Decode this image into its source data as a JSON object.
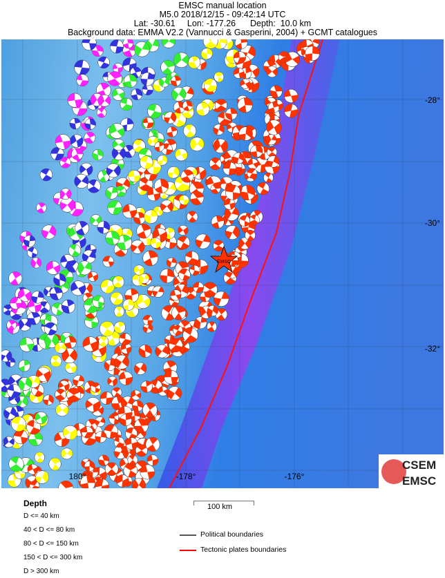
{
  "header": {
    "line1": "EMSC manual location",
    "line2": "M5.0  2018/12/15 - 09:42:14 UTC",
    "line3": "Lat: -30.61     Lon: -177.26      Depth:  10.0 km",
    "line4": "Background data: EMMA V2.2 (Vannucci & Gasperini, 2004) + GCMT catalogues"
  },
  "map": {
    "lon_labels": [
      "180°",
      "-178°",
      "-176°"
    ],
    "lat_labels": [
      "-28°",
      "-30°",
      "-32°"
    ],
    "epicenter_label": "EMSC",
    "epicenter": {
      "lat": -30.61,
      "lon": -177.26
    },
    "logo": {
      "top": "CSEM",
      "bottom": "EMSC"
    }
  },
  "legend": {
    "depth_title": "Depth",
    "depth_classes": [
      {
        "label": "D <= 40 km",
        "color": "#ff3300"
      },
      {
        "label": "40 < D <= 80 km",
        "color": "#ffff00"
      },
      {
        "label": "80 < D <= 150 km",
        "color": "#33ee33"
      },
      {
        "label": "150 < D <= 300 km",
        "color": "#3333dd"
      },
      {
        "label": "D > 300 km",
        "color": "#ff22ff"
      }
    ],
    "scale_label": "100 km",
    "lines": [
      {
        "label": "Political boundaries",
        "color": "#555555"
      },
      {
        "label": "Tectonic plates boundaries",
        "color": "#ff0000"
      }
    ]
  }
}
